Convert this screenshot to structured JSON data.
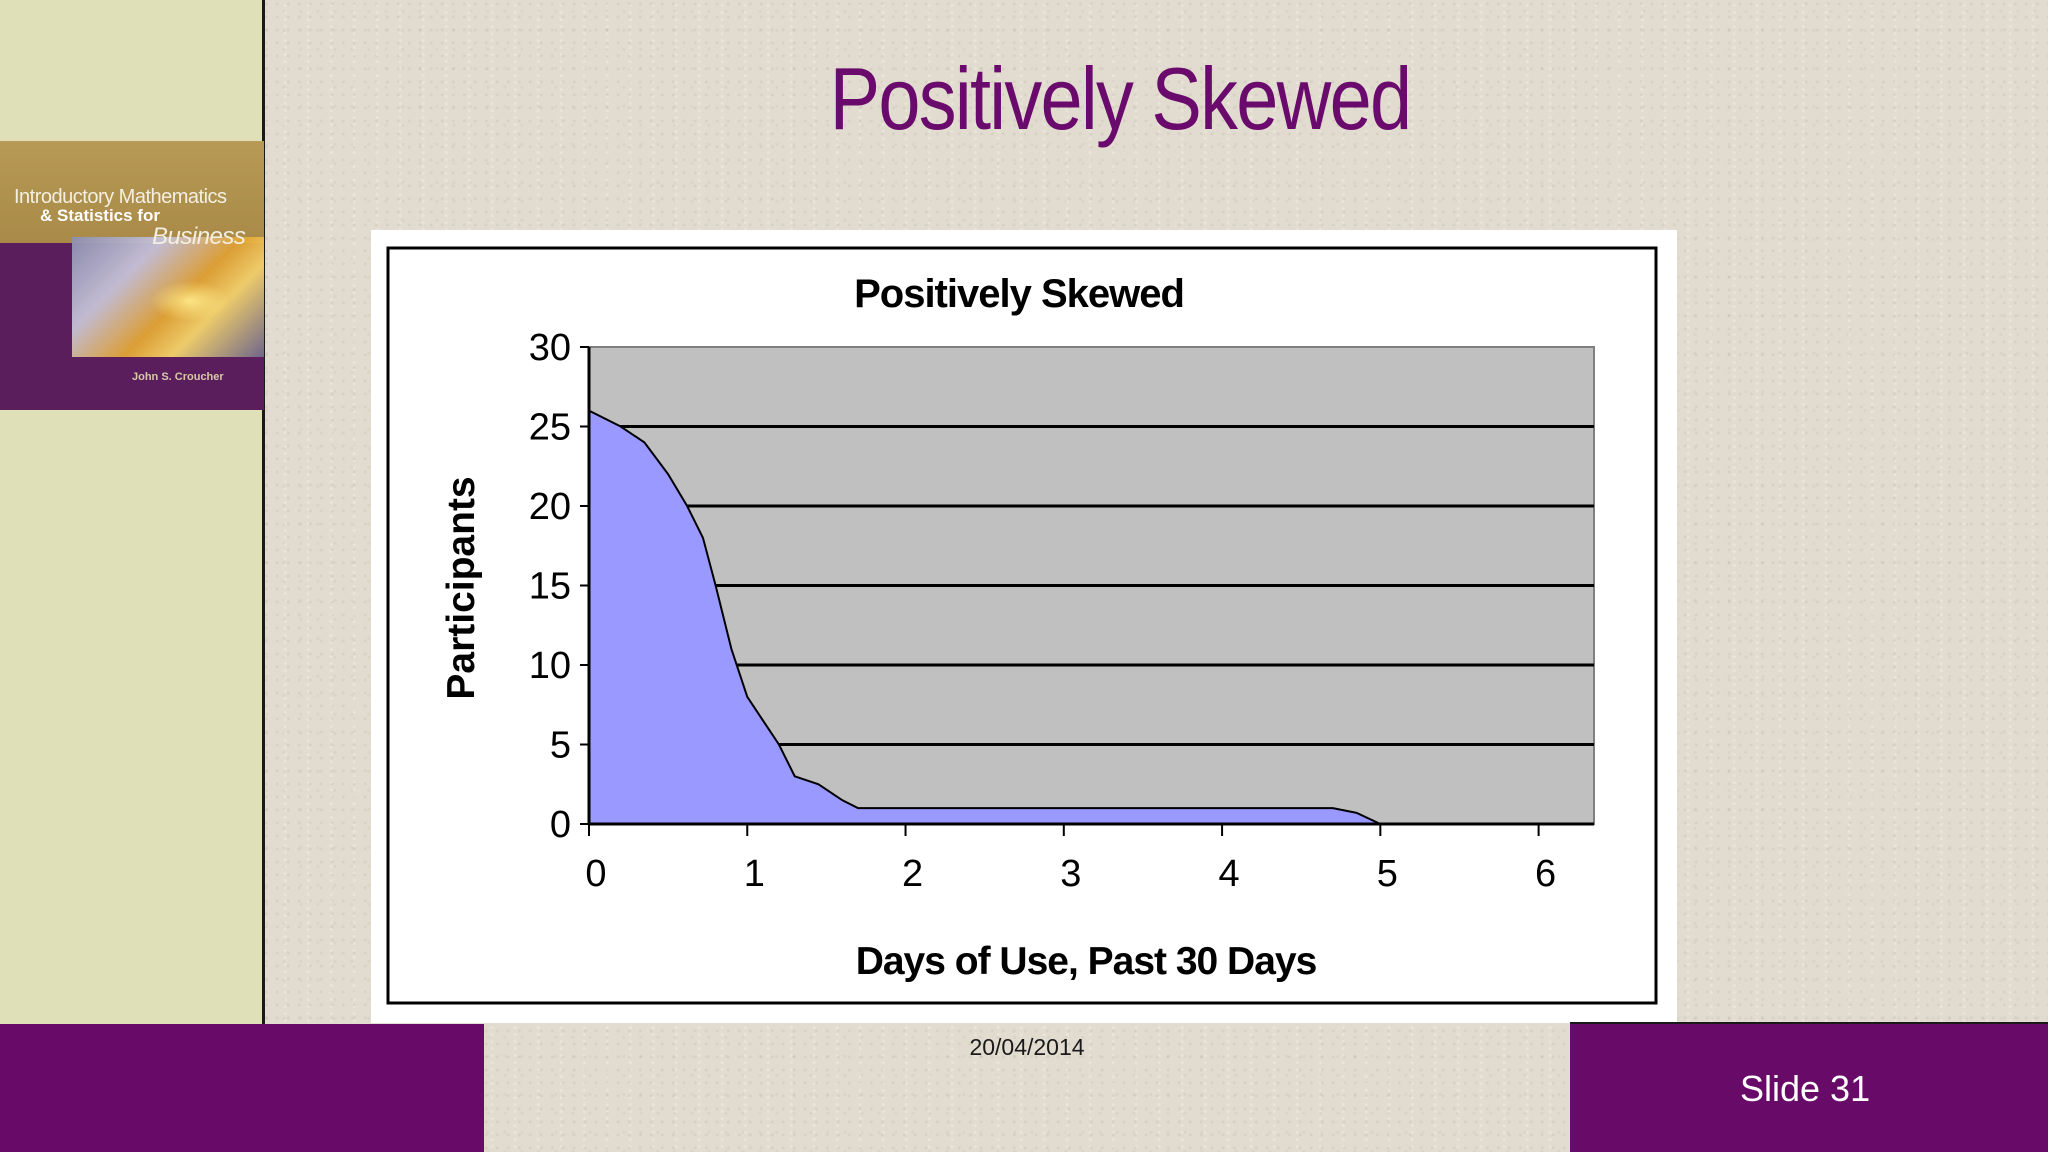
{
  "slide": {
    "title": "Positively Skewed",
    "date": "20/04/2014",
    "number_label": "Slide 31"
  },
  "book_cover": {
    "line1": "Introductory Mathematics",
    "line2": "& Statistics for",
    "line3": "Business",
    "author": "John S. Croucher"
  },
  "colors": {
    "title": "#6a0a6c",
    "footer": "#680a67",
    "plot_area": "#c0c0c0",
    "area_fill": "#9999ff"
  },
  "chart_data": {
    "type": "area",
    "title": "Positively Skewed",
    "xlabel": "Days of Use, Past 30 Days",
    "ylabel": "Participants",
    "xlim": [
      0,
      6.35
    ],
    "ylim": [
      0,
      30
    ],
    "xticks": [
      0,
      1,
      2,
      3,
      4,
      5,
      6
    ],
    "yticks": [
      0,
      5,
      10,
      15,
      20,
      25,
      30
    ],
    "grid": true,
    "legend": "none",
    "series": [
      {
        "x": [
          0,
          0.2,
          0.35,
          0.5,
          0.62,
          0.72,
          0.8,
          0.9,
          1.0,
          1.1,
          1.2,
          1.3,
          1.45,
          1.6,
          1.7,
          2.0,
          3.0,
          4.0,
          4.7,
          4.85,
          5.0
        ],
        "values": [
          26,
          25,
          24,
          22,
          20,
          18,
          15,
          11,
          8,
          6.5,
          5,
          3,
          2.5,
          1.5,
          1,
          1,
          1,
          1,
          1,
          0.7,
          0
        ]
      }
    ]
  }
}
